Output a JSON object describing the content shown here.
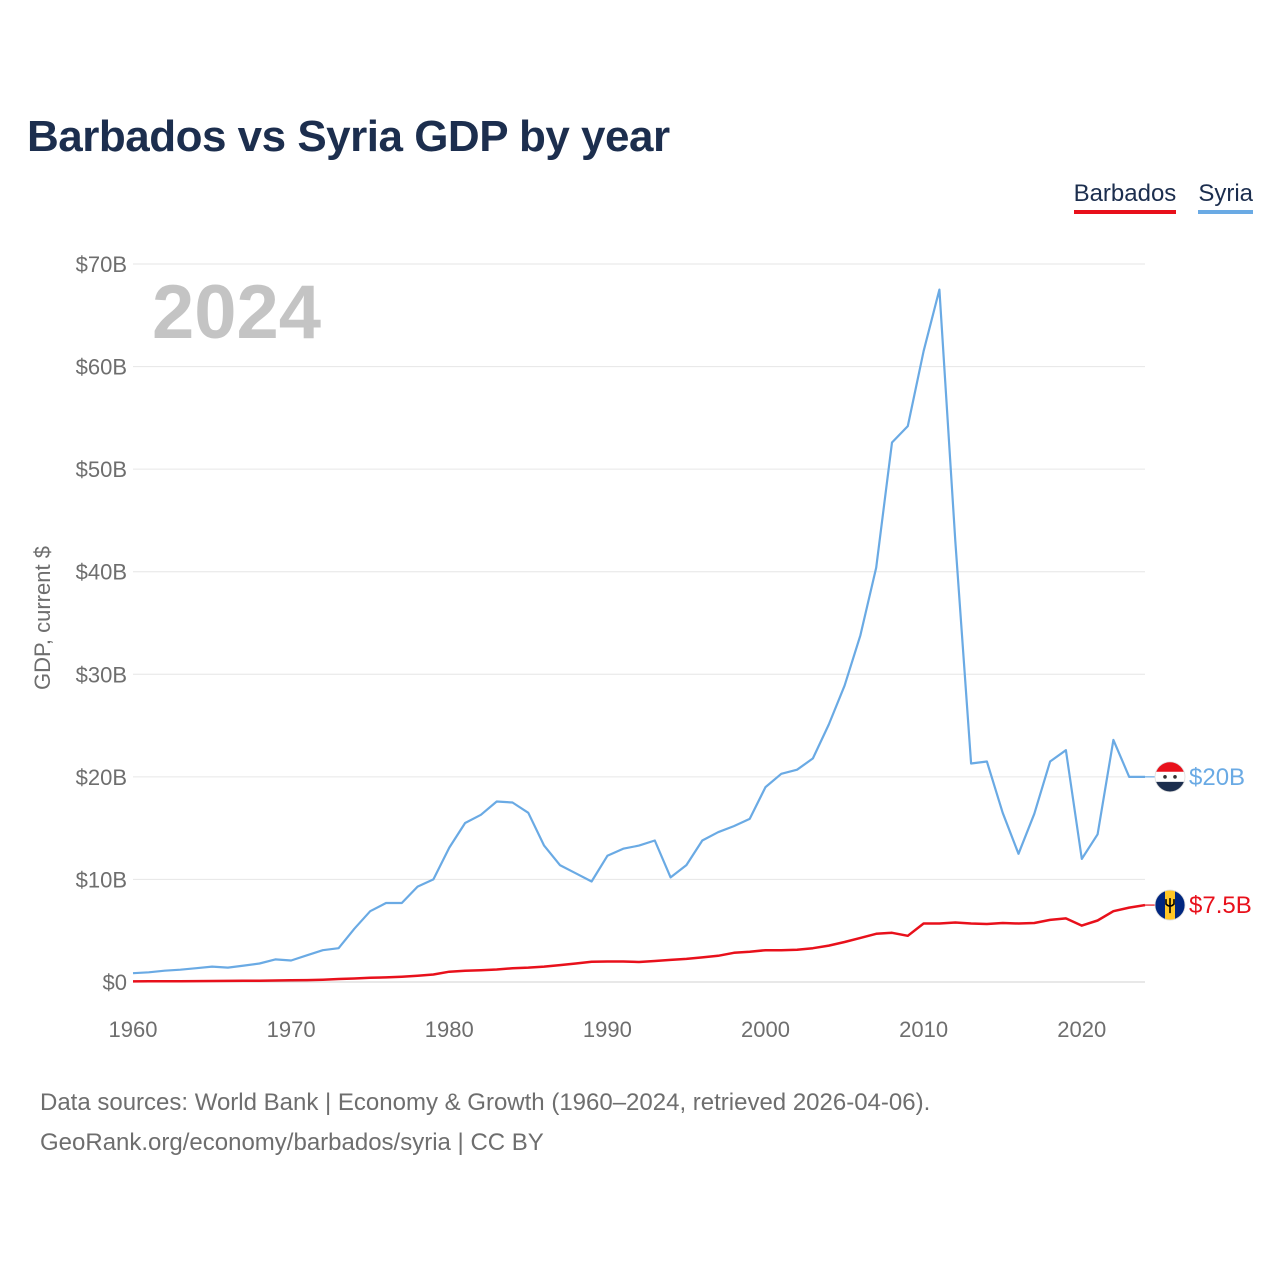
{
  "colors": {
    "barbados": "#e8101b",
    "syria": "#6aaae4",
    "title": "#1c2e4e",
    "grid": "#e6e6e6",
    "axis_text": "#6e6e6e",
    "year_watermark": "#c4c4c4"
  },
  "footer": {
    "sources": "Data sources: World Bank | Economy & Growth (1960–2024, retrieved 2026-04-06).",
    "link": "GeoRank.org/economy/barbados/syria",
    "license": " | CC BY"
  },
  "chart_data": {
    "type": "line",
    "title": "Barbados vs Syria GDP by year",
    "watermark_year": "2024",
    "ylabel": "GDP, current $",
    "xlabel": "",
    "xlim": [
      1960,
      2024
    ],
    "ylim": [
      0,
      70
    ],
    "x_ticks": [
      1960,
      1970,
      1980,
      1990,
      2000,
      2010,
      2020
    ],
    "y_ticks": [
      0,
      10,
      20,
      30,
      40,
      50,
      60,
      70
    ],
    "y_tick_labels": [
      "$0",
      "$10B",
      "$20B",
      "$30B",
      "$40B",
      "$50B",
      "$60B",
      "$70B"
    ],
    "units": "billions of current US dollars",
    "legend_position": "top-right",
    "series": [
      {
        "name": "Barbados",
        "end_label": "$7.5B",
        "flag": "barbados-flag-icon",
        "x": [
          1960,
          1961,
          1962,
          1963,
          1964,
          1965,
          1966,
          1967,
          1968,
          1969,
          1970,
          1971,
          1972,
          1973,
          1974,
          1975,
          1976,
          1977,
          1978,
          1979,
          1980,
          1981,
          1982,
          1983,
          1984,
          1985,
          1986,
          1987,
          1988,
          1989,
          1990,
          1991,
          1992,
          1993,
          1994,
          1995,
          1996,
          1997,
          1998,
          1999,
          2000,
          2001,
          2002,
          2003,
          2004,
          2005,
          2006,
          2007,
          2008,
          2009,
          2010,
          2011,
          2012,
          2013,
          2014,
          2015,
          2016,
          2017,
          2018,
          2019,
          2020,
          2021,
          2022,
          2023,
          2024
        ],
        "values": [
          0.06,
          0.07,
          0.07,
          0.08,
          0.09,
          0.1,
          0.11,
          0.12,
          0.13,
          0.15,
          0.17,
          0.19,
          0.22,
          0.29,
          0.34,
          0.41,
          0.45,
          0.52,
          0.61,
          0.73,
          1.0,
          1.1,
          1.15,
          1.22,
          1.35,
          1.4,
          1.5,
          1.65,
          1.8,
          1.98,
          2.0,
          2.0,
          1.95,
          2.05,
          2.15,
          2.25,
          2.4,
          2.55,
          2.85,
          2.95,
          3.1,
          3.1,
          3.15,
          3.3,
          3.55,
          3.9,
          4.3,
          4.7,
          4.8,
          4.5,
          5.7,
          5.7,
          5.8,
          5.7,
          5.65,
          5.75,
          5.7,
          5.75,
          6.05,
          6.2,
          5.5,
          6.0,
          6.9,
          7.25,
          7.5
        ]
      },
      {
        "name": "Syria",
        "end_label": "$20B",
        "flag": "syria-flag-icon",
        "x": [
          1960,
          1961,
          1962,
          1963,
          1964,
          1965,
          1966,
          1967,
          1968,
          1969,
          1970,
          1971,
          1972,
          1973,
          1974,
          1975,
          1976,
          1977,
          1978,
          1979,
          1980,
          1981,
          1982,
          1983,
          1984,
          1985,
          1986,
          1987,
          1988,
          1989,
          1990,
          1991,
          1992,
          1993,
          1994,
          1995,
          1996,
          1997,
          1998,
          1999,
          2000,
          2001,
          2002,
          2003,
          2004,
          2005,
          2006,
          2007,
          2008,
          2009,
          2010,
          2011,
          2012,
          2013,
          2014,
          2015,
          2016,
          2017,
          2018,
          2019,
          2020,
          2021,
          2022,
          2023,
          2024
        ],
        "values": [
          0.86,
          0.95,
          1.1,
          1.2,
          1.35,
          1.5,
          1.4,
          1.6,
          1.8,
          2.2,
          2.1,
          2.6,
          3.1,
          3.3,
          5.2,
          6.9,
          7.7,
          7.7,
          9.3,
          10.0,
          13.1,
          15.5,
          16.3,
          17.6,
          17.5,
          16.5,
          13.3,
          11.4,
          10.6,
          9.8,
          12.3,
          13.0,
          13.3,
          13.8,
          10.2,
          11.4,
          13.8,
          14.6,
          15.2,
          15.9,
          19.0,
          20.3,
          20.7,
          21.8,
          25.1,
          28.9,
          33.8,
          40.4,
          52.6,
          54.2,
          61.5,
          67.5,
          43.0,
          21.3,
          21.5,
          16.5,
          12.5,
          16.4,
          21.5,
          22.6,
          12.0,
          14.4,
          23.6,
          20.0,
          20.0
        ]
      }
    ]
  }
}
